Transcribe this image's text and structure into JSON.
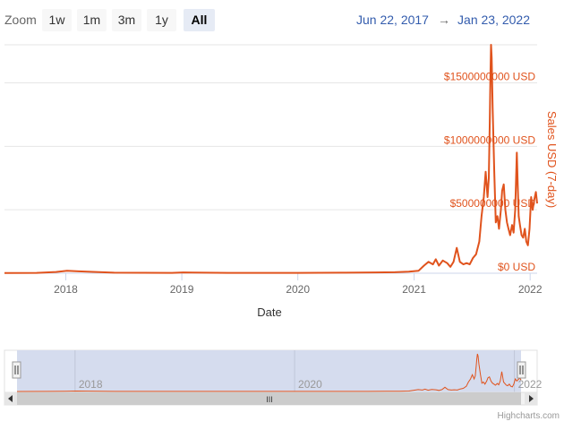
{
  "range_selector": {
    "zoom_label": "Zoom",
    "buttons": [
      {
        "label": "1w",
        "active": false
      },
      {
        "label": "1m",
        "active": false
      },
      {
        "label": "3m",
        "active": false
      },
      {
        "label": "1y",
        "active": false
      },
      {
        "label": "All",
        "active": true
      }
    ],
    "from": "Jun 22, 2017",
    "arrow": "→",
    "to": "Jan 23, 2022"
  },
  "credits": "Highcharts.com",
  "navigator": {
    "scrollbar_grip": "III",
    "x_tick_labels": [
      "2018",
      "2020",
      "2022"
    ]
  },
  "colors": {
    "series": "#e0531d",
    "navigator_mask": "#d5dcee",
    "grid": "#e6e6e6",
    "range_text": "#335cad"
  },
  "chart_data": {
    "type": "line",
    "xlabel": "Date",
    "ylabel": "Sales USD (7-day)",
    "y_axis_side": "right",
    "xlim": [
      "2017-06-22",
      "2022-01-23"
    ],
    "ylim": [
      0,
      1800000000
    ],
    "x_tick_labels": [
      "2018",
      "2019",
      "2020",
      "2021",
      "2022"
    ],
    "y_tick_labels": [
      "$0 USD",
      "$500000000 USD",
      "$1000000000 USD",
      "$1500000000 USD"
    ],
    "grid": true,
    "series": [
      {
        "x": [
          "2017-06-22",
          "2017-10-01",
          "2017-12-01",
          "2018-01-05",
          "2018-02-10",
          "2018-06-01",
          "2018-12-01",
          "2019-01-05",
          "2019-02-01",
          "2019-06-01",
          "2019-12-01",
          "2020-01-01",
          "2020-06-01",
          "2020-09-01",
          "2020-11-01",
          "2020-12-15",
          "2021-01-15",
          "2021-02-01",
          "2021-02-15",
          "2021-03-01",
          "2021-03-10",
          "2021-03-20",
          "2021-04-01",
          "2021-04-15",
          "2021-04-25",
          "2021-05-05",
          "2021-05-15",
          "2021-05-25",
          "2021-06-05",
          "2021-06-15",
          "2021-06-25",
          "2021-07-05",
          "2021-07-15",
          "2021-07-25",
          "2021-08-01",
          "2021-08-08",
          "2021-08-14",
          "2021-08-20",
          "2021-08-24",
          "2021-08-27",
          "2021-08-29",
          "2021-08-31",
          "2021-09-02",
          "2021-09-05",
          "2021-09-10",
          "2021-09-15",
          "2021-09-20",
          "2021-09-25",
          "2021-10-01",
          "2021-10-05",
          "2021-10-10",
          "2021-10-15",
          "2021-10-20",
          "2021-10-25",
          "2021-10-30",
          "2021-11-05",
          "2021-11-10",
          "2021-11-15",
          "2021-11-20",
          "2021-11-23",
          "2021-11-26",
          "2021-11-30",
          "2021-12-05",
          "2021-12-10",
          "2021-12-15",
          "2021-12-20",
          "2021-12-25",
          "2021-12-30",
          "2022-01-04",
          "2022-01-09",
          "2022-01-14",
          "2022-01-19",
          "2022-01-23"
        ],
        "y": [
          2000000,
          3000000,
          10000000,
          20000000,
          15000000,
          4000000,
          3000000,
          6000000,
          5000000,
          3000000,
          3000000,
          3000000,
          4000000,
          6000000,
          8000000,
          12000000,
          20000000,
          60000000,
          90000000,
          70000000,
          110000000,
          60000000,
          100000000,
          80000000,
          50000000,
          90000000,
          200000000,
          90000000,
          70000000,
          80000000,
          70000000,
          120000000,
          150000000,
          250000000,
          450000000,
          600000000,
          800000000,
          600000000,
          750000000,
          1200000000,
          1550000000,
          1800000000,
          1700000000,
          1300000000,
          800000000,
          400000000,
          450000000,
          350000000,
          500000000,
          650000000,
          700000000,
          500000000,
          400000000,
          350000000,
          300000000,
          380000000,
          320000000,
          500000000,
          950000000,
          700000000,
          450000000,
          380000000,
          300000000,
          280000000,
          350000000,
          250000000,
          220000000,
          350000000,
          600000000,
          500000000,
          580000000,
          640000000,
          550000000
        ]
      }
    ]
  }
}
